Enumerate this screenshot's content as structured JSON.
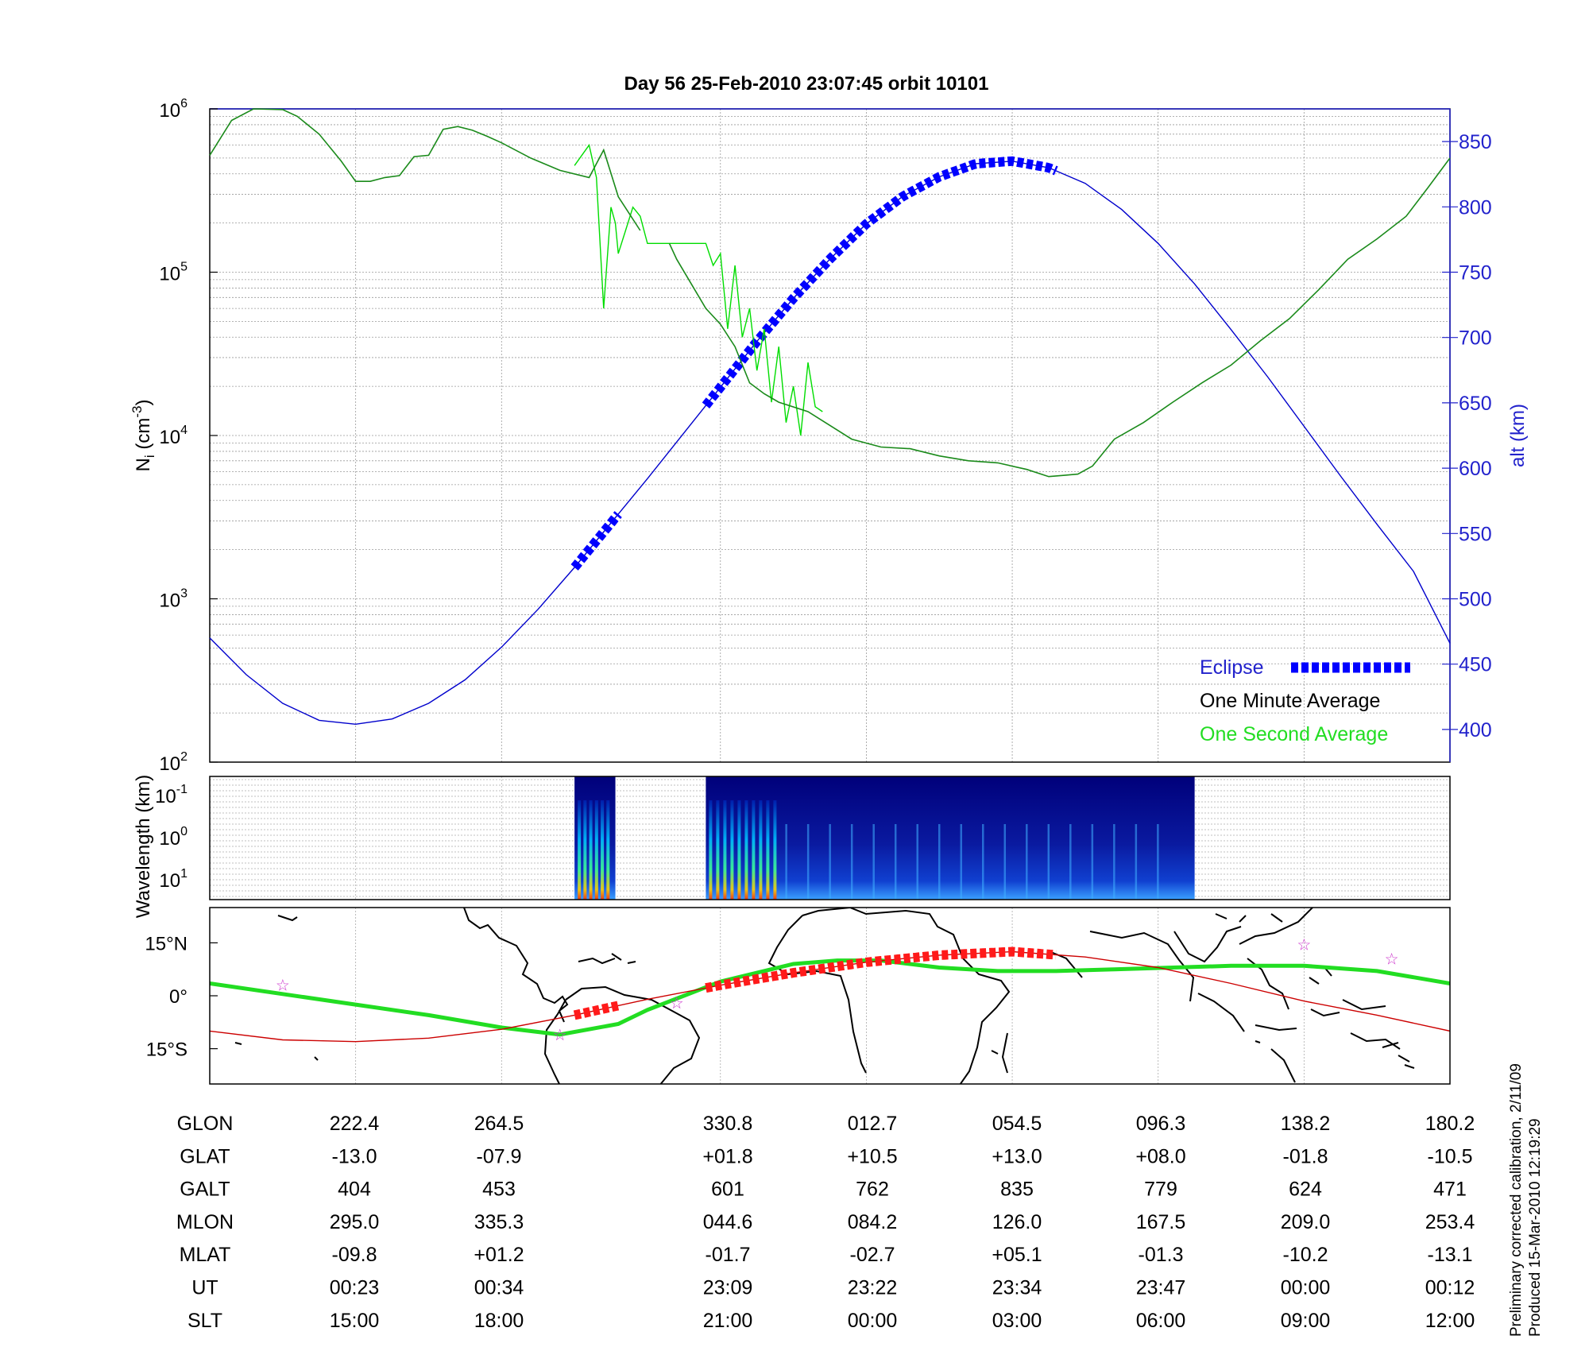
{
  "title": "Day 56  25-Feb-2010 23:07:45   orbit 10101",
  "footnote": {
    "line1": "Preliminary corrected calibration, 2/11/09",
    "line2": "Produced 15-Mar-2010 12:19:29"
  },
  "colors": {
    "altitude": "#0000cc",
    "eclipse": "#0000ff",
    "minute_avg": "#000000",
    "second_avg": "#00dd00",
    "track": "#cc0000",
    "mag_equator": "#22dd22",
    "stars": "#cc33cc"
  },
  "chart_data": [
    {
      "type": "line",
      "panel": "density",
      "ylabel": "N_i (cm^-3)",
      "ylabel_left": {
        "main": "N",
        "sub": "i",
        "unit": " (cm",
        "sup": "-3",
        "close": ")"
      },
      "ylabel_right": "alt (km)",
      "yscale_left": "log",
      "ylim_left": [
        100,
        1000000
      ],
      "yticks_left": [
        {
          "value": 100,
          "base": "10",
          "exp": "2"
        },
        {
          "value": 1000,
          "base": "10",
          "exp": "3"
        },
        {
          "value": 10000,
          "base": "10",
          "exp": "4"
        },
        {
          "value": 100000,
          "base": "10",
          "exp": "5"
        },
        {
          "value": 1000000,
          "base": "10",
          "exp": "6"
        }
      ],
      "ylim_right": [
        375,
        875
      ],
      "yticks_right": [
        "400",
        "450",
        "500",
        "550",
        "600",
        "650",
        "700",
        "750",
        "800",
        "850"
      ],
      "grid": true,
      "legend": {
        "position": "bottom-right",
        "entries": [
          "Eclipse",
          "One Minute Average",
          "One Second Average"
        ]
      },
      "x_range": [
        0,
        8.5
      ],
      "series": [
        {
          "name": "One Minute Average",
          "x": [
            0,
            0.15,
            0.3,
            0.5,
            0.6,
            0.75,
            0.9,
            1.0,
            1.1,
            1.2,
            1.3,
            1.4,
            1.5,
            1.6,
            1.7,
            1.8,
            1.9,
            2.0,
            2.2,
            2.4,
            2.6,
            2.7,
            2.8,
            2.95,
            3.0,
            3.15,
            3.2,
            3.4,
            3.5,
            3.6,
            3.7,
            3.8,
            3.9,
            4.1,
            4.4,
            4.6,
            4.8,
            5.0,
            5.2,
            5.4,
            5.6,
            5.75,
            5.85,
            5.95,
            6.05,
            6.2,
            6.4,
            6.6,
            6.8,
            7.0,
            7.2,
            7.4,
            7.6,
            7.8,
            8.0,
            8.2,
            8.35,
            8.5
          ],
          "values": [
            520000,
            850000,
            1000000,
            990000,
            900000,
            700000,
            480000,
            360000,
            360000,
            380000,
            390000,
            510000,
            520000,
            750000,
            780000,
            740000,
            680000,
            620000,
            500000,
            420000,
            380000,
            560000,
            290000,
            180000,
            null,
            150000,
            120000,
            60000,
            48000,
            35000,
            21000,
            18000,
            16000,
            14000,
            9500,
            8500,
            8300,
            7500,
            7000,
            6800,
            6200,
            5600,
            5700,
            5800,
            6500,
            9500,
            12000,
            16000,
            21000,
            27000,
            38000,
            52000,
            78000,
            120000,
            160000,
            220000,
            330000,
            500000
          ]
        },
        {
          "name": "One Second Average",
          "x": [
            2.5,
            2.6,
            2.65,
            2.7,
            2.75,
            2.78,
            2.8,
            2.85,
            2.9,
            2.95,
            3.0,
            3.4,
            3.45,
            3.5,
            3.55,
            3.6,
            3.65,
            3.7,
            3.75,
            3.8,
            3.85,
            3.9,
            3.95,
            4.0,
            4.05,
            4.1,
            4.15,
            4.2
          ],
          "values": [
            450000,
            600000,
            380000,
            60000,
            250000,
            200000,
            130000,
            180000,
            250000,
            220000,
            150000,
            150000,
            110000,
            130000,
            45000,
            110000,
            40000,
            60000,
            25000,
            45000,
            16000,
            35000,
            12000,
            20000,
            10000,
            28000,
            15000,
            14000
          ]
        },
        {
          "name": "alt (km)",
          "axis": "right",
          "x": [
            0,
            0.25,
            0.5,
            0.75,
            1.0,
            1.25,
            1.5,
            1.75,
            2.0,
            2.25,
            2.5,
            2.75,
            3.0,
            3.25,
            3.5,
            3.75,
            4.0,
            4.25,
            4.5,
            4.75,
            5.0,
            5.25,
            5.5,
            5.75,
            6.0,
            6.25,
            6.5,
            6.75,
            7.0,
            7.25,
            7.5,
            7.75,
            8.0,
            8.25,
            8.5
          ],
          "values": [
            470,
            442,
            420,
            407,
            404,
            408,
            420,
            438,
            463,
            492,
            524,
            558,
            592,
            627,
            662,
            697,
            730,
            760,
            787,
            808,
            823,
            833,
            835,
            830,
            818,
            798,
            772,
            741,
            706,
            670,
            632,
            594,
            557,
            521,
            466
          ]
        }
      ],
      "eclipse_segments": [
        [
          2.5,
          2.8
        ],
        [
          3.4,
          5.8
        ]
      ]
    },
    {
      "type": "heatmap",
      "panel": "spectrogram",
      "ylabel": "Wavelength (km)",
      "yticks": [
        {
          "base": "10",
          "exp": "-1"
        },
        {
          "base": "10",
          "exp": "0"
        },
        {
          "base": "10",
          "exp": "1"
        }
      ],
      "data_intervals": [
        [
          2.5,
          2.78
        ],
        [
          3.4,
          6.75
        ]
      ]
    },
    {
      "type": "map",
      "panel": "ground-track",
      "yticks": [
        "15°N",
        "0°",
        "15°S"
      ],
      "ylim": [
        -25,
        25
      ],
      "series": [
        {
          "name": "magnetic equator",
          "x": [
            0,
            0.5,
            1.0,
            1.5,
            2.0,
            2.4,
            2.8,
            3.0,
            3.5,
            4.0,
            4.3,
            4.6,
            5.0,
            5.4,
            5.8,
            6.2,
            6.6,
            7.0,
            7.5,
            8.0,
            8.5
          ],
          "values": [
            3.5,
            0.5,
            -2.5,
            -5.5,
            -9,
            -11,
            -8,
            -4,
            4,
            9,
            10,
            10,
            8,
            7,
            7,
            7.5,
            8,
            8.5,
            8.5,
            7,
            3.5
          ]
        },
        {
          "name": "ground track",
          "x": [
            0,
            0.5,
            1.0,
            1.5,
            2.0,
            2.5,
            3.0,
            3.5,
            4.0,
            4.5,
            5.0,
            5.5,
            6.0,
            6.5,
            7.0,
            7.5,
            8.0,
            8.5
          ],
          "values": [
            -10,
            -12.5,
            -13,
            -12,
            -9.5,
            -5.5,
            -1,
            3,
            6.5,
            9.5,
            11.5,
            12.5,
            11,
            8,
            3.5,
            -1.5,
            -5.5,
            -10
          ]
        }
      ],
      "stars": [
        [
          0.5,
          3
        ],
        [
          2.4,
          -11
        ],
        [
          3.2,
          -2
        ],
        [
          7.5,
          14.5
        ],
        [
          8.1,
          10.5
        ]
      ]
    }
  ],
  "table": {
    "rows": [
      {
        "label": "GLON",
        "values": [
          "222.4",
          "264.5",
          "330.8",
          "012.7",
          "054.5",
          "096.3",
          "138.2",
          "180.2"
        ]
      },
      {
        "label": "GLAT",
        "values": [
          "-13.0",
          "-07.9",
          "+01.8",
          "+10.5",
          "+13.0",
          "+08.0",
          "-01.8",
          "-10.5"
        ]
      },
      {
        "label": "GALT",
        "values": [
          "404",
          "453",
          "601",
          "762",
          "835",
          "779",
          "624",
          "471"
        ]
      },
      {
        "label": "MLON",
        "values": [
          "295.0",
          "335.3",
          "044.6",
          "084.2",
          "126.0",
          "167.5",
          "209.0",
          "253.4"
        ]
      },
      {
        "label": "MLAT",
        "values": [
          "-09.8",
          "+01.2",
          "-01.7",
          "-02.7",
          "+05.1",
          "-01.3",
          "-10.2",
          "-13.1"
        ]
      },
      {
        "label": "UT",
        "values": [
          "00:23",
          "00:34",
          "23:09",
          "23:22",
          "23:34",
          "23:47",
          "00:00",
          "00:12"
        ]
      },
      {
        "label": "SLT",
        "values": [
          "15:00",
          "18:00",
          "21:00",
          "00:00",
          "03:00",
          "06:00",
          "09:00",
          "12:00"
        ]
      }
    ]
  }
}
